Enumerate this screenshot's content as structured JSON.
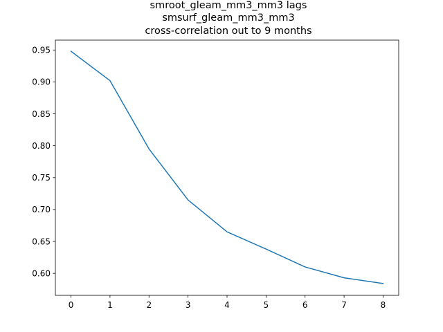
{
  "chart_data": {
    "type": "line",
    "title_lines": [
      "smroot_gleam_mm3_mm3 lags",
      "smsurf_gleam_mm3_mm3",
      "cross-correlation out to 9 months"
    ],
    "xlabel": "",
    "ylabel": "",
    "x": [
      0,
      1,
      2,
      3,
      4,
      5,
      6,
      7,
      8
    ],
    "series": [
      {
        "values": [
          0.948,
          0.902,
          0.795,
          0.715,
          0.665,
          0.638,
          0.61,
          0.593,
          0.584
        ],
        "color": "#1f77b4"
      }
    ],
    "xlim": [
      -0.4,
      8.4
    ],
    "ylim": [
      0.5655,
      0.9655
    ],
    "xticks": [
      "0",
      "1",
      "2",
      "3",
      "4",
      "5",
      "6",
      "7",
      "8"
    ],
    "yticks": [
      "0.60",
      "0.65",
      "0.70",
      "0.75",
      "0.80",
      "0.85",
      "0.90",
      "0.95"
    ],
    "grid": false,
    "legend": "none"
  }
}
